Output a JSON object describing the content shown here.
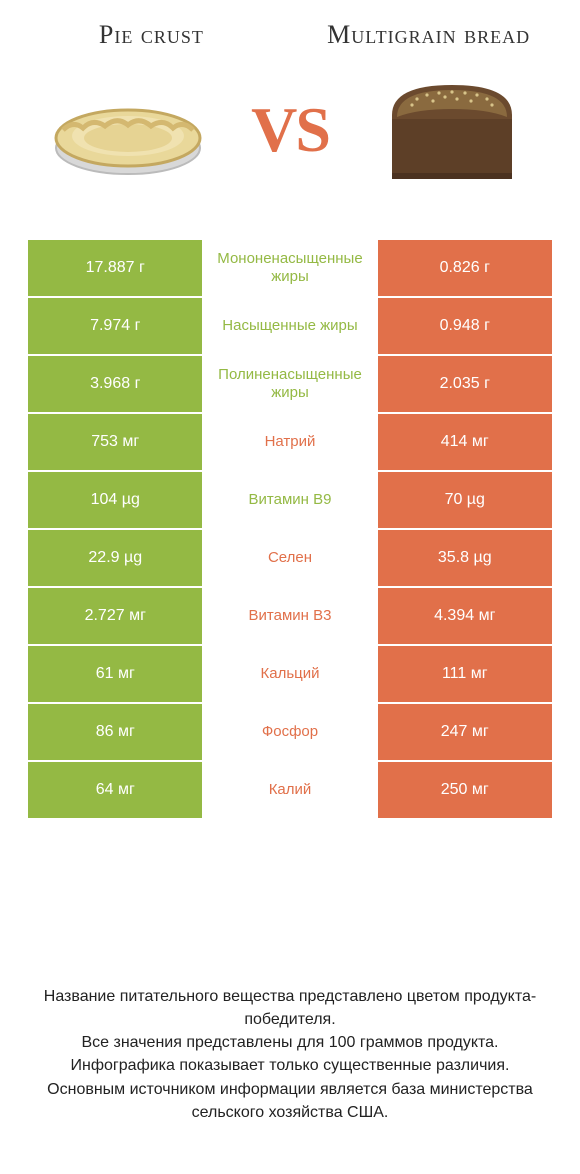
{
  "titles": {
    "left": "Pie crust",
    "right": "Multigrain bread"
  },
  "vs": "VS",
  "colors": {
    "left_bg": "#94b944",
    "right_bg": "#e1704a",
    "left_text": "#94b944",
    "right_text": "#e1704a",
    "vs": "#e1704a"
  },
  "rows": [
    {
      "left": "17.887 г",
      "mid": "Мононенасыщенные жиры",
      "right": "0.826 г",
      "winner": "left"
    },
    {
      "left": "7.974 г",
      "mid": "Насыщенные жиры",
      "right": "0.948 г",
      "winner": "left"
    },
    {
      "left": "3.968 г",
      "mid": "Полиненасыщенные жиры",
      "right": "2.035 г",
      "winner": "left"
    },
    {
      "left": "753 мг",
      "mid": "Натрий",
      "right": "414 мг",
      "winner": "right"
    },
    {
      "left": "104 µg",
      "mid": "Витамин B9",
      "right": "70 µg",
      "winner": "left"
    },
    {
      "left": "22.9 µg",
      "mid": "Селен",
      "right": "35.8 µg",
      "winner": "right"
    },
    {
      "left": "2.727 мг",
      "mid": "Витамин B3",
      "right": "4.394 мг",
      "winner": "right"
    },
    {
      "left": "61 мг",
      "mid": "Кальций",
      "right": "111 мг",
      "winner": "right"
    },
    {
      "left": "86 мг",
      "mid": "Фосфор",
      "right": "247 мг",
      "winner": "right"
    },
    {
      "left": "64 мг",
      "mid": "Калий",
      "right": "250 мг",
      "winner": "right"
    }
  ],
  "footer": {
    "line1": "Название питательного вещества представлено цветом продукта-победителя.",
    "line2": "Все значения представлены для 100 граммов продукта.",
    "line3": "Инфографика показывает только существенные различия.",
    "line4": "Основным источником информации является база министерства сельского хозяйства США."
  }
}
